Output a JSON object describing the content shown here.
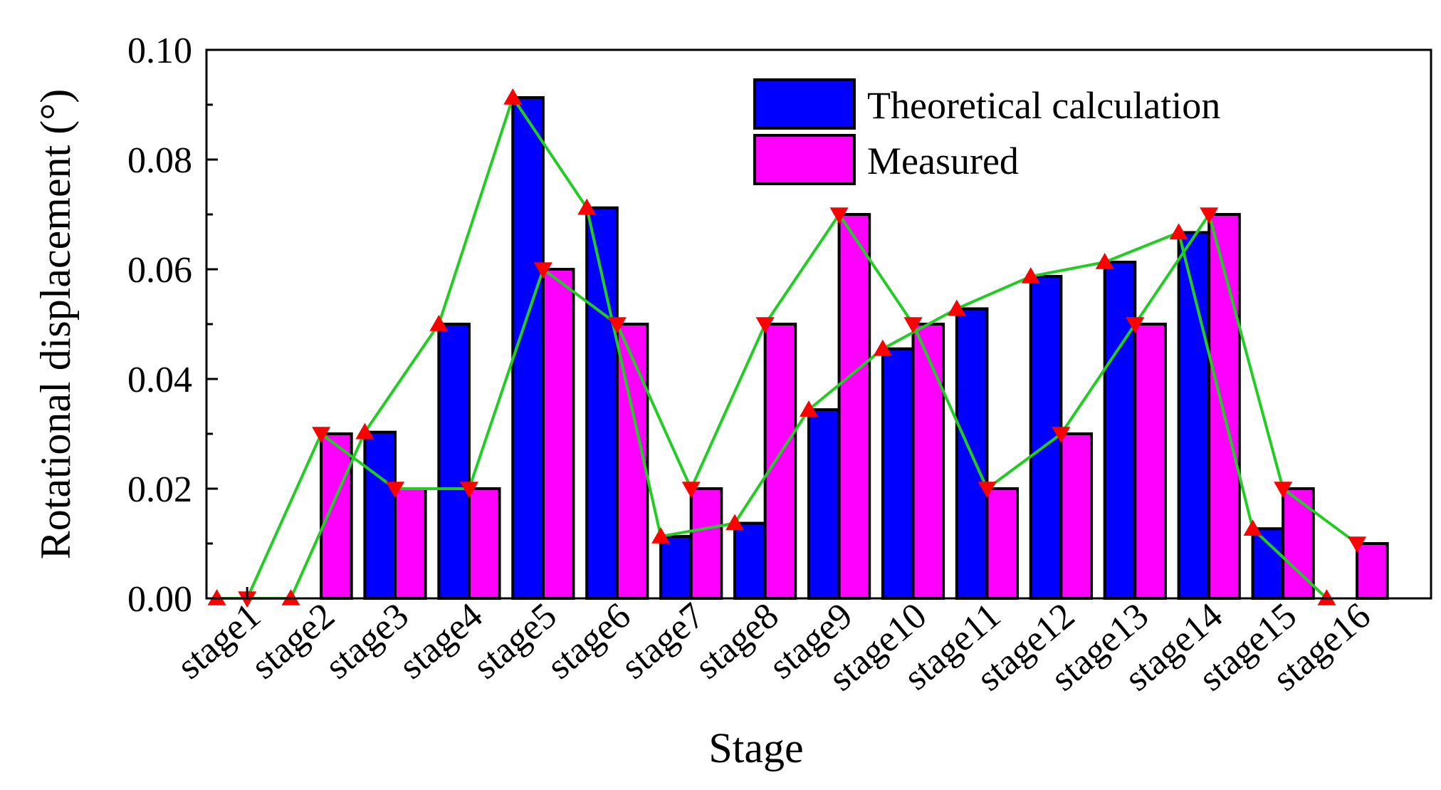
{
  "chart_data": {
    "type": "bar",
    "title": "",
    "xlabel": "Stage",
    "ylabel": "Rotational displacement (°)",
    "ylim": [
      0,
      0.1
    ],
    "yticks": [
      "0.00",
      "0.02",
      "0.04",
      "0.06",
      "0.08",
      "0.10"
    ],
    "categories": [
      "stage1",
      "stage2",
      "stage3",
      "stage4",
      "stage5",
      "stage6",
      "stage7",
      "stage8",
      "stage9",
      "stage10",
      "stage11",
      "stage12",
      "stage13",
      "stage14",
      "stage15",
      "stage16"
    ],
    "series": [
      {
        "name": "Theoretical calculation",
        "color": "#0000ff",
        "values": [
          0,
          0,
          0.0303,
          0.05,
          0.0913,
          0.0712,
          0.0113,
          0.0137,
          0.0344,
          0.0455,
          0.0528,
          0.0587,
          0.0613,
          0.0667,
          0.0127,
          0
        ]
      },
      {
        "name": "Measured",
        "color": "#ff00ff",
        "values": [
          0,
          0.03,
          0.02,
          0.02,
          0.06,
          0.05,
          0.02,
          0.05,
          0.07,
          0.05,
          0.02,
          0.03,
          0.05,
          0.07,
          0.02,
          0.01
        ]
      }
    ],
    "line_color": "#22cc22",
    "marker_color": "#ff0000",
    "legend_position": "top-right"
  }
}
